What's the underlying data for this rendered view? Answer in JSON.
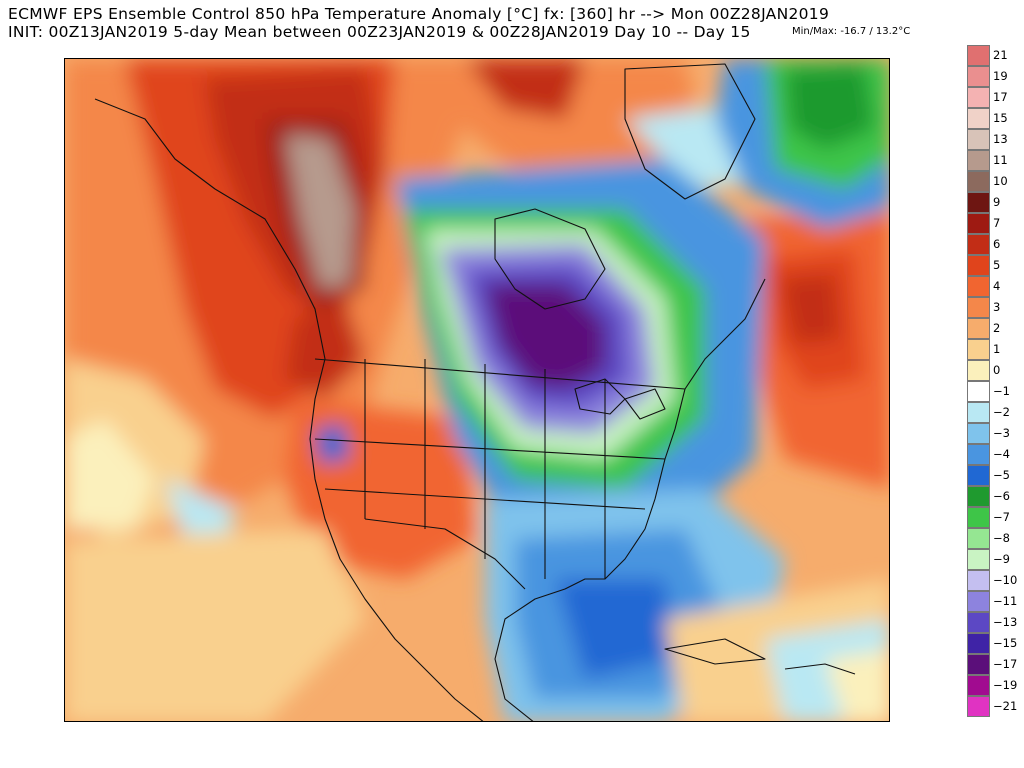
{
  "header": {
    "line1": "ECMWF EPS Ensemble Control 850 hPa Temperature Anomaly [°C] fx: [360] hr --> Mon 00Z28JAN2019",
    "line2": "INIT: 00Z13JAN2019 5-day Mean between 00Z23JAN2019 & 00Z28JAN2019    Day 10 -- Day 15",
    "minmax": "Min/Max: -16.7 / 13.2°C"
  },
  "legend": {
    "items": [
      {
        "label": "21",
        "color": "#e07070"
      },
      {
        "label": "19",
        "color": "#ea8f8f"
      },
      {
        "label": "17",
        "color": "#f4b2b2"
      },
      {
        "label": "15",
        "color": "#f0d2c8"
      },
      {
        "label": "13",
        "color": "#d8c3b8"
      },
      {
        "label": "11",
        "color": "#b69a8d"
      },
      {
        "label": "10",
        "color": "#8c6a5e"
      },
      {
        "label": "9",
        "color": "#6e1612"
      },
      {
        "label": "7",
        "color": "#9e1a12"
      },
      {
        "label": "6",
        "color": "#c22d16"
      },
      {
        "label": "5",
        "color": "#e0441c"
      },
      {
        "label": "4",
        "color": "#f16530"
      },
      {
        "label": "3",
        "color": "#f4874a"
      },
      {
        "label": "2",
        "color": "#f6ac6c"
      },
      {
        "label": "1",
        "color": "#f9d08e"
      },
      {
        "label": "0",
        "color": "#fbf0bc"
      },
      {
        "label": "−1",
        "color": "#ffffff"
      },
      {
        "label": "−2",
        "color": "#b9e8f3"
      },
      {
        "label": "−3",
        "color": "#7fc3ec"
      },
      {
        "label": "−4",
        "color": "#4a95e0"
      },
      {
        "label": "−5",
        "color": "#2068d3"
      },
      {
        "label": "−6",
        "color": "#1f9a2f"
      },
      {
        "label": "−7",
        "color": "#3ec548"
      },
      {
        "label": "−8",
        "color": "#95e692"
      },
      {
        "label": "−9",
        "color": "#c9f3c3"
      },
      {
        "label": "−10",
        "color": "#c4bff0"
      },
      {
        "label": "−11",
        "color": "#8d83de"
      },
      {
        "label": "−13",
        "color": "#5c48c4"
      },
      {
        "label": "−15",
        "color": "#3f23a6"
      },
      {
        "label": "−17",
        "color": "#5b0f7a"
      },
      {
        "label": "−19",
        "color": "#a10b90"
      },
      {
        "label": "−21",
        "color": "#e033c2"
      }
    ]
  }
}
